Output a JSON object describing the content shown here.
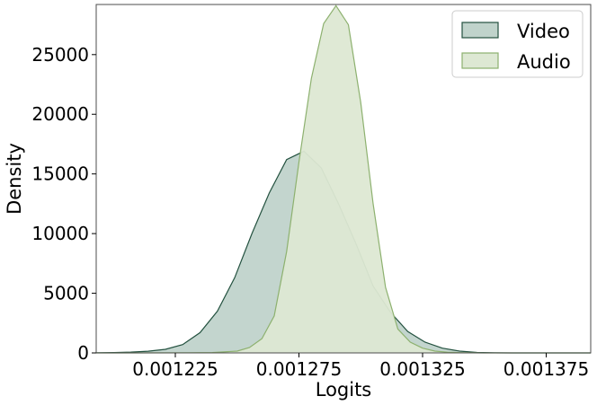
{
  "chart_data": {
    "type": "area",
    "title": "",
    "xlabel": "Logits",
    "ylabel": "Density",
    "xlim": [
      0.001193,
      0.001393
    ],
    "ylim": [
      0,
      29200
    ],
    "xticks": [
      0.001225,
      0.001275,
      0.001325,
      0.001375
    ],
    "xtick_labels": [
      "0.001225",
      "0.001275",
      "0.001325",
      "0.001375"
    ],
    "yticks": [
      0,
      5000,
      10000,
      15000,
      20000,
      25000
    ],
    "ytick_labels": [
      "0",
      "5000",
      "10000",
      "15000",
      "20000",
      "25000"
    ],
    "grid": false,
    "legend_position": "top-right",
    "series": [
      {
        "name": "Video",
        "fill": "#c0d3cb",
        "stroke": "#23513f",
        "x": [
          0.001193,
          0.0012,
          0.001207,
          0.001214,
          0.001221,
          0.001228,
          0.001235,
          0.001242,
          0.001249,
          0.001256,
          0.001263,
          0.00127,
          0.001277,
          0.001284,
          0.001291,
          0.001298,
          0.001305,
          0.001312,
          0.001319,
          0.001326,
          0.001333,
          0.00134,
          0.001347,
          0.001354,
          0.001361,
          0.001368,
          0.001375,
          0.001382,
          0.001389,
          0.001393
        ],
        "values": [
          10,
          30,
          70,
          140,
          300,
          700,
          1700,
          3500,
          6300,
          10000,
          13400,
          16200,
          16900,
          15500,
          12500,
          9200,
          5600,
          3400,
          1800,
          900,
          400,
          150,
          40,
          10,
          3,
          1,
          1,
          1,
          1,
          0
        ]
      },
      {
        "name": "Audio",
        "fill": "#dde8d3",
        "stroke": "#8db16f",
        "x": [
          0.001193,
          0.00123,
          0.00124,
          0.00125,
          0.001255,
          0.00126,
          0.001265,
          0.00127,
          0.001275,
          0.00128,
          0.001285,
          0.00129,
          0.001295,
          0.0013,
          0.001305,
          0.00131,
          0.001315,
          0.00132,
          0.001325,
          0.00133,
          0.001335,
          0.00134,
          0.001345,
          0.00135,
          0.00136,
          0.001393
        ],
        "values": [
          0,
          5,
          30,
          150,
          450,
          1200,
          3100,
          8500,
          16000,
          23000,
          27600,
          29100,
          27500,
          21000,
          12500,
          5500,
          2000,
          900,
          400,
          150,
          60,
          20,
          5,
          2,
          0,
          0
        ]
      }
    ]
  }
}
